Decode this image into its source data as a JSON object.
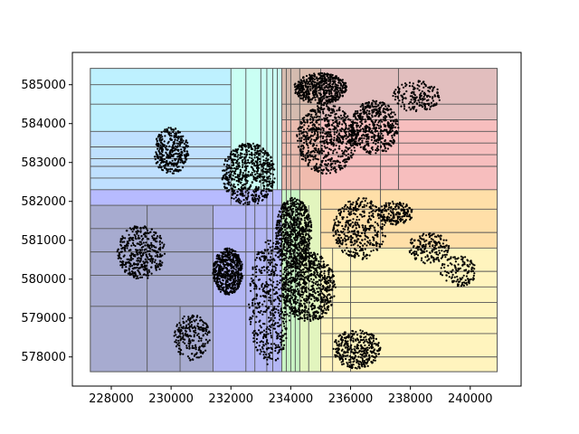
{
  "chart_data": {
    "type": "scatter",
    "title": "",
    "xlabel": "",
    "ylabel": "",
    "xlim": [
      226700,
      241700
    ],
    "ylim": [
      577250,
      585830
    ],
    "xticks": [
      228000,
      230000,
      232000,
      234000,
      236000,
      238000,
      240000
    ],
    "xtick_labels": [
      "228000",
      "230000",
      "232000",
      "234000",
      "236000",
      "238000",
      "240000"
    ],
    "yticks": [
      578000,
      579000,
      580000,
      581000,
      582000,
      583000,
      584000,
      585000
    ],
    "ytick_labels": [
      "578000",
      "579000",
      "580000",
      "581000",
      "582000",
      "583000",
      "584000",
      "585000"
    ],
    "grid": false,
    "legend": "none",
    "extent": {
      "x": [
        227300,
        240900
      ],
      "y": [
        577620,
        585420
      ]
    },
    "partitions": [
      {
        "x": [
          227300,
          231400
        ],
        "y": [
          577620,
          581900
        ],
        "color": "#8a8fc0"
      },
      {
        "x": [
          231400,
          233700
        ],
        "y": [
          577620,
          581900
        ],
        "color": "#9a9ef0"
      },
      {
        "x": [
          227300,
          233700
        ],
        "y": [
          581900,
          582300
        ],
        "color": "#9fa4ff"
      },
      {
        "x": [
          227300,
          232000
        ],
        "y": [
          582300,
          583800
        ],
        "color": "#a9d6ff"
      },
      {
        "x": [
          227300,
          232000
        ],
        "y": [
          583800,
          585420
        ],
        "color": "#a8ecff"
      },
      {
        "x": [
          232000,
          233700
        ],
        "y": [
          582300,
          585420
        ],
        "color": "#b8fff0"
      },
      {
        "x": [
          233700,
          234300
        ],
        "y": [
          577620,
          585420
        ],
        "color": "#b6f0b0"
      },
      {
        "x": [
          234300,
          235000
        ],
        "y": [
          577620,
          585420
        ],
        "color": "#d8f2a8"
      },
      {
        "x": [
          235000,
          240900
        ],
        "y": [
          577620,
          582300
        ],
        "color": "#fff0a8"
      },
      {
        "x": [
          235000,
          240900
        ],
        "y": [
          580800,
          582300
        ],
        "color": "#ffd8a0"
      },
      {
        "x": [
          233700,
          240900
        ],
        "y": [
          582300,
          584100
        ],
        "color": "#f4a8a8"
      },
      {
        "x": [
          233700,
          240900
        ],
        "y": [
          584100,
          585420
        ],
        "color": "#d8a8a8"
      }
    ],
    "partition_lines_x": [
      [
        229200,
        577620,
        581900
      ],
      [
        230300,
        577620,
        579300
      ],
      [
        231400,
        577620,
        581900
      ],
      [
        232000,
        581900,
        585420
      ],
      [
        232500,
        577620,
        585420
      ],
      [
        232800,
        577620,
        582300
      ],
      [
        233000,
        582300,
        585420
      ],
      [
        233200,
        577620,
        585420
      ],
      [
        233400,
        577620,
        585420
      ],
      [
        233550,
        582300,
        585420
      ],
      [
        233700,
        577620,
        585420
      ],
      [
        233850,
        577620,
        585420
      ],
      [
        234000,
        577620,
        585420
      ],
      [
        234150,
        577620,
        581900
      ],
      [
        234300,
        577620,
        585420
      ],
      [
        234600,
        577620,
        581900
      ],
      [
        235000,
        577620,
        585420
      ],
      [
        235400,
        577620,
        580800
      ],
      [
        236000,
        577620,
        580800
      ],
      [
        237000,
        580800,
        584100
      ],
      [
        237600,
        582300,
        585420
      ]
    ],
    "partition_lines_y": [
      [
        227300,
        233700,
        579300
      ],
      [
        227300,
        233700,
        580100
      ],
      [
        227300,
        233700,
        580700
      ],
      [
        227300,
        233700,
        581300
      ],
      [
        227300,
        233700,
        581900
      ],
      [
        227300,
        233700,
        582300
      ],
      [
        227300,
        232000,
        582600
      ],
      [
        227300,
        232000,
        582900
      ],
      [
        227300,
        232000,
        583100
      ],
      [
        227300,
        232000,
        583400
      ],
      [
        227300,
        232000,
        583800
      ],
      [
        227300,
        232000,
        584500
      ],
      [
        227300,
        232000,
        585000
      ],
      [
        235000,
        240900,
        578000
      ],
      [
        235000,
        240900,
        578600
      ],
      [
        235000,
        240900,
        579000
      ],
      [
        235000,
        240900,
        579400
      ],
      [
        235000,
        240900,
        579800
      ],
      [
        235000,
        240900,
        580200
      ],
      [
        235000,
        240900,
        580800
      ],
      [
        235000,
        240900,
        581200
      ],
      [
        235000,
        240900,
        581800
      ],
      [
        233700,
        240900,
        582300
      ],
      [
        233700,
        240900,
        582900
      ],
      [
        233700,
        240900,
        583200
      ],
      [
        233700,
        240900,
        583500
      ],
      [
        233700,
        240900,
        583800
      ],
      [
        233700,
        240900,
        584100
      ],
      [
        233700,
        240900,
        584500
      ]
    ],
    "point_clusters": [
      {
        "center": [
          229000,
          580700
        ],
        "radius": [
          800,
          700
        ],
        "density": 0.45
      },
      {
        "center": [
          230000,
          583300
        ],
        "radius": [
          600,
          600
        ],
        "density": 0.4
      },
      {
        "center": [
          231900,
          580200
        ],
        "radius": [
          500,
          600
        ],
        "density": 0.6
      },
      {
        "center": [
          232600,
          582700
        ],
        "radius": [
          900,
          800
        ],
        "density": 0.7
      },
      {
        "center": [
          233300,
          579400
        ],
        "radius": [
          700,
          1600
        ],
        "density": 0.55
      },
      {
        "center": [
          234100,
          581200
        ],
        "radius": [
          600,
          900
        ],
        "density": 0.8
      },
      {
        "center": [
          234600,
          579800
        ],
        "radius": [
          900,
          900
        ],
        "density": 0.85
      },
      {
        "center": [
          235200,
          583600
        ],
        "radius": [
          1000,
          900
        ],
        "density": 0.75
      },
      {
        "center": [
          235000,
          584900
        ],
        "radius": [
          900,
          400
        ],
        "density": 0.6
      },
      {
        "center": [
          236800,
          583900
        ],
        "radius": [
          800,
          700
        ],
        "density": 0.55
      },
      {
        "center": [
          236300,
          581300
        ],
        "radius": [
          900,
          800
        ],
        "density": 0.45
      },
      {
        "center": [
          236200,
          578200
        ],
        "radius": [
          800,
          500
        ],
        "density": 0.4
      },
      {
        "center": [
          238200,
          584700
        ],
        "radius": [
          800,
          400
        ],
        "density": 0.2
      },
      {
        "center": [
          237500,
          581700
        ],
        "radius": [
          600,
          300
        ],
        "density": 0.2
      },
      {
        "center": [
          238600,
          580800
        ],
        "radius": [
          700,
          400
        ],
        "density": 0.2
      },
      {
        "center": [
          239600,
          580200
        ],
        "radius": [
          600,
          400
        ],
        "density": 0.15
      },
      {
        "center": [
          230700,
          578500
        ],
        "radius": [
          600,
          600
        ],
        "density": 0.25
      }
    ],
    "scatter_marker": "point",
    "scatter_color": "#000000"
  }
}
